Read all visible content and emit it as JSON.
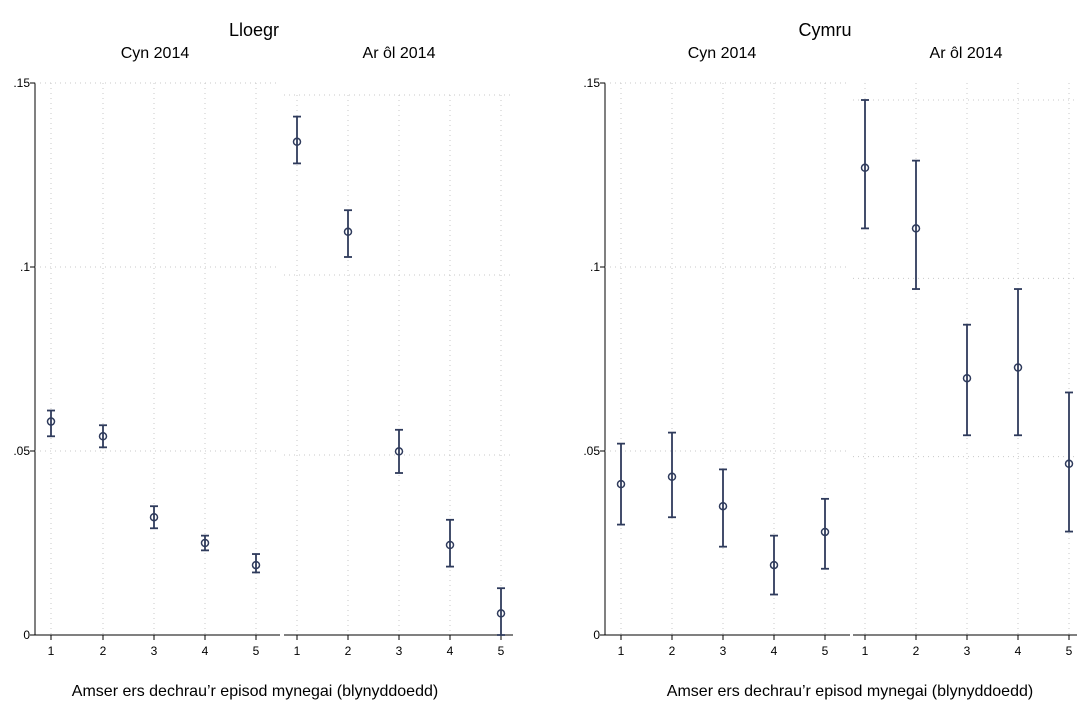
{
  "chart_data": [
    {
      "type": "scatter",
      "title": "Lloegr",
      "xlabel": "Amser ers dechrau’r episod mynegai (blynyddoedd)",
      "ylabel": "",
      "ylim": [
        0,
        0.15
      ],
      "yticks": [
        0,
        0.05,
        0.1,
        0.15
      ],
      "ytick_labels": [
        "0",
        ".05",
        ".1",
        ".15"
      ],
      "grid": true,
      "panels": [
        {
          "title": "Cyn 2014",
          "x": [
            1,
            2,
            3,
            4,
            5
          ],
          "estimate": [
            0.058,
            0.054,
            0.032,
            0.025,
            0.019
          ],
          "ci_low": [
            0.054,
            0.051,
            0.029,
            0.023,
            0.017
          ],
          "ci_high": [
            0.061,
            0.057,
            0.035,
            0.027,
            0.022
          ]
        },
        {
          "title": "Ar ôl 2014",
          "x": [
            1,
            2,
            3,
            4,
            5
          ],
          "estimate": [
            0.137,
            0.112,
            0.051,
            0.025,
            0.006
          ],
          "ci_low": [
            0.131,
            0.105,
            0.045,
            0.019,
            0.0
          ],
          "ci_high": [
            0.144,
            0.118,
            0.057,
            0.032,
            0.013
          ]
        }
      ]
    },
    {
      "type": "scatter",
      "title": "Cymru",
      "xlabel": "Amser ers dechrau’r episod mynegai (blynyddoedd)",
      "ylabel": "",
      "ylim": [
        0,
        0.15
      ],
      "yticks": [
        0,
        0.05,
        0.1,
        0.15
      ],
      "ytick_labels": [
        "0",
        ".05",
        ".1",
        ".15"
      ],
      "grid": true,
      "panels": [
        {
          "title": "Cyn 2014",
          "x": [
            1,
            2,
            3,
            4,
            5
          ],
          "estimate": [
            0.041,
            0.043,
            0.035,
            0.019,
            0.028
          ],
          "ci_low": [
            0.03,
            0.032,
            0.024,
            0.011,
            0.018
          ],
          "ci_high": [
            0.052,
            0.055,
            0.045,
            0.027,
            0.037
          ]
        },
        {
          "title": "Ar ôl 2014",
          "x": [
            1,
            2,
            3,
            4,
            5
          ],
          "estimate": [
            0.131,
            0.114,
            0.072,
            0.075,
            0.048
          ],
          "ci_low": [
            0.114,
            0.097,
            0.056,
            0.056,
            0.029
          ],
          "ci_high": [
            0.15,
            0.133,
            0.087,
            0.097,
            0.068
          ]
        }
      ]
    }
  ]
}
